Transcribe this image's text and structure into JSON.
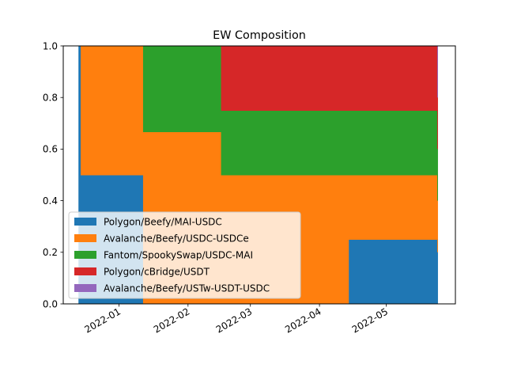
{
  "chart_data": {
    "type": "area",
    "title": "EW Composition",
    "xlabel": "",
    "ylabel": "",
    "ylim": [
      0,
      1.0
    ],
    "xlim": [
      "2021-12-07",
      "2022-06-01"
    ],
    "grid": false,
    "stacked": true,
    "legend_position": "lower-left",
    "y_ticks": [
      0.0,
      0.2,
      0.4,
      0.6,
      0.8,
      1.0
    ],
    "y_tick_labels": [
      "0.0",
      "0.2",
      "0.4",
      "0.6",
      "0.8",
      "1.0"
    ],
    "x_ticks": [
      "2022-01-01",
      "2022-02-01",
      "2022-03-01",
      "2022-04-01",
      "2022-05-01"
    ],
    "x_tick_labels": [
      "2022-01",
      "2022-02",
      "2022-03",
      "2022-04",
      "2022-05"
    ],
    "x": [
      "2021-12-14",
      "2021-12-15",
      "2022-01-12",
      "2022-02-16",
      "2022-04-14",
      "2022-05-24"
    ],
    "series": [
      {
        "name": "Polygon/Beefy/MAI-USDC",
        "color": "#1f77b4",
        "values": [
          1.0,
          0.5,
          0.0,
          0.0,
          0.25,
          0.2
        ]
      },
      {
        "name": "Avalanche/Beefy/USDC-USDCe",
        "color": "#ff7f0e",
        "values": [
          0.0,
          0.5,
          0.667,
          0.5,
          0.25,
          0.2
        ]
      },
      {
        "name": "Fantom/SpookySwap/USDC-MAI",
        "color": "#2ca02c",
        "values": [
          0.0,
          0.0,
          0.333,
          0.25,
          0.25,
          0.2
        ]
      },
      {
        "name": "Polygon/cBridge/USDT",
        "color": "#d62728",
        "values": [
          0.0,
          0.0,
          0.0,
          0.25,
          0.25,
          0.2
        ]
      },
      {
        "name": "Avalanche/Beefy/USTw-USDT-USDC",
        "color": "#9467bd",
        "values": [
          0.0,
          0.0,
          0.0,
          0.0,
          0.0,
          0.2
        ]
      }
    ]
  }
}
